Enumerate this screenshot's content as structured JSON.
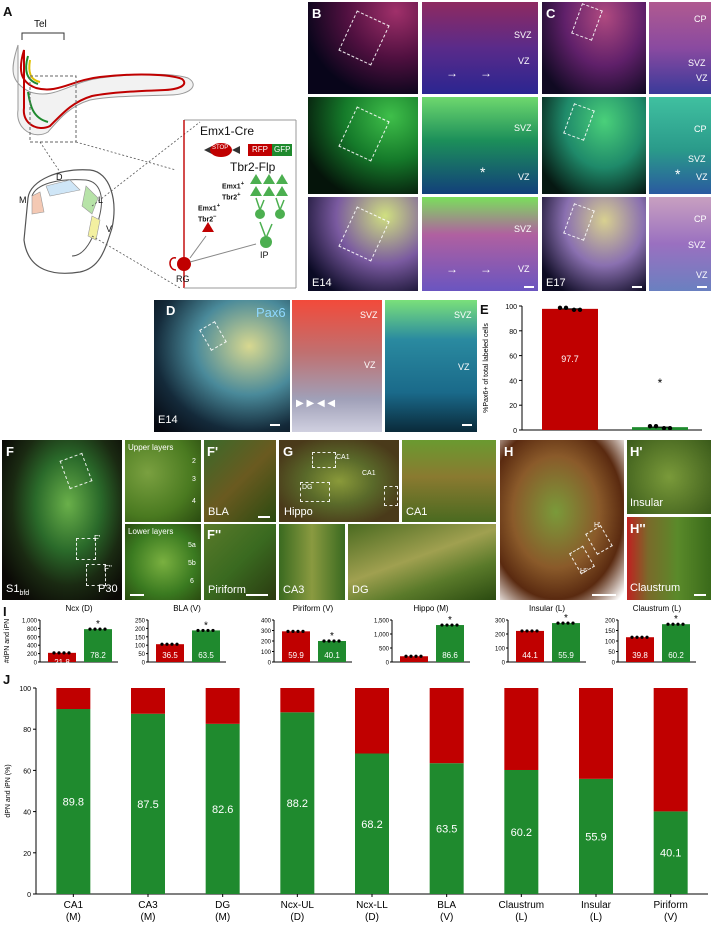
{
  "panel_letters": {
    "A": "A",
    "B": "B",
    "C": "C",
    "D": "D",
    "E": "E",
    "F": "F",
    "Fp": "F'",
    "Fpp": "F''",
    "G": "G",
    "H": "H",
    "Hp": "H'",
    "Hpp": "H''",
    "I": "I",
    "J": "J"
  },
  "panel_a": {
    "tel": "Tel",
    "d": "D",
    "m": "M",
    "l": "L",
    "v": "V",
    "emx1_cre": "Emx1-Cre",
    "stop": "STOP",
    "rfp": "RFP",
    "gfp": "GFP",
    "tbr2_flp": "Tbr2-Flp",
    "emx1_tbr2_pos_1": "Emx1",
    "emx1_tbr2_pos_2": "Tbr2",
    "emx1_tbr2_neg_1": "Emx1",
    "emx1_tbr2_neg_2": "Tbr2",
    "ip": "IP",
    "rg": "RG"
  },
  "panel_b": {
    "svz": "SVZ",
    "vz": "VZ",
    "age": "E14"
  },
  "panel_c": {
    "cp": "CP",
    "svz": "SVZ",
    "vz": "VZ",
    "age": "E17"
  },
  "panel_d": {
    "marker": "Pax6",
    "age": "E14",
    "svz": "SVZ",
    "vz": "VZ"
  },
  "panel_f": {
    "region": "S1",
    "region_sub": "bfd",
    "age": "P30",
    "upper": "Upper layers",
    "lower": "Lower layers",
    "l2": "2",
    "l3": "3",
    "l4": "4",
    "l5a": "5a",
    "l5b": "5b",
    "l6": "6",
    "fp_tag": "F'",
    "fpp_tag": "F''"
  },
  "panel_fp": {
    "label": "BLA"
  },
  "panel_fpp": {
    "label": "Piriform"
  },
  "panel_g": {
    "label": "Hippo",
    "ca1": "CA1",
    "dg": "DG"
  },
  "panel_g_ca1": {
    "label": "CA1"
  },
  "panel_g_ca3": {
    "label": "CA3"
  },
  "panel_g_dg": {
    "label": "DG"
  },
  "panel_h": {
    "hp_tag": "H'",
    "hpp_tag": "H''"
  },
  "panel_hp": {
    "label": "Insular"
  },
  "panel_hpp": {
    "label": "Claustrum"
  },
  "colors": {
    "red": "#c00000",
    "green": "#1f8a2e"
  },
  "chart_data": [
    {
      "id": "E",
      "type": "bar",
      "ylabel": "%Pax6+ of total labeled cells",
      "ylim": [
        0,
        100
      ],
      "yticks": [
        0,
        20,
        40,
        60,
        80,
        100
      ],
      "series": [
        {
          "name": "",
          "color": "#c00000",
          "values": [
            97.7
          ]
        },
        {
          "name": "",
          "color": "#1f8a2e",
          "values": [
            2.3
          ]
        }
      ],
      "value_labels": [
        "97.7",
        ""
      ],
      "significance": [
        "",
        "*"
      ]
    },
    {
      "id": "I1",
      "type": "bar",
      "title": "Ncx (D)",
      "ylabel": "#dPN and iPN",
      "ylim": [
        0,
        1000
      ],
      "yticks": [
        0,
        200,
        400,
        600,
        800,
        1000
      ],
      "values": [
        218,
        782
      ],
      "colors": [
        "#c00000",
        "#1f8a2e"
      ],
      "value_labels": [
        "21.8",
        "78.2"
      ],
      "significance": [
        "",
        "*"
      ]
    },
    {
      "id": "I2",
      "type": "bar",
      "title": "BLA (V)",
      "ylim": [
        0,
        250
      ],
      "yticks": [
        0,
        50,
        100,
        150,
        200,
        250
      ],
      "values": [
        106,
        188
      ],
      "colors": [
        "#c00000",
        "#1f8a2e"
      ],
      "value_labels": [
        "36.5",
        "63.5"
      ],
      "significance": [
        "",
        "*"
      ]
    },
    {
      "id": "I3",
      "type": "bar",
      "title": "Piriform (V)",
      "ylim": [
        0,
        400
      ],
      "yticks": [
        0,
        100,
        200,
        300,
        400
      ],
      "values": [
        292,
        200
      ],
      "colors": [
        "#c00000",
        "#1f8a2e"
      ],
      "value_labels": [
        "59.9",
        "40.1"
      ],
      "significance": [
        "",
        "*"
      ]
    },
    {
      "id": "I4",
      "type": "bar",
      "title": "Hippo (M)",
      "ylim": [
        0,
        1500
      ],
      "yticks": [
        0,
        500,
        1000,
        1500
      ],
      "values": [
        205,
        1320
      ],
      "colors": [
        "#c00000",
        "#1f8a2e"
      ],
      "value_labels": [
        "13.4",
        "86.6"
      ],
      "significance": [
        "",
        "*"
      ]
    },
    {
      "id": "I5",
      "type": "bar",
      "title": "Insular (L)",
      "ylim": [
        0,
        300
      ],
      "yticks": [
        0,
        100,
        200,
        300
      ],
      "values": [
        222,
        278
      ],
      "colors": [
        "#c00000",
        "#1f8a2e"
      ],
      "value_labels": [
        "44.1",
        "55.9"
      ],
      "significance": [
        "",
        "*"
      ]
    },
    {
      "id": "I6",
      "type": "bar",
      "title": "Claustrum (L)",
      "ylim": [
        0,
        200
      ],
      "yticks": [
        0,
        50,
        100,
        150,
        200
      ],
      "values": [
        118,
        180
      ],
      "colors": [
        "#c00000",
        "#1f8a2e"
      ],
      "value_labels": [
        "39.8",
        "60.2"
      ],
      "significance": [
        "",
        "*"
      ]
    },
    {
      "id": "J",
      "type": "bar",
      "stacked": true,
      "ylabel": "dPN and iPN (%)",
      "ylim": [
        0,
        100
      ],
      "yticks": [
        0,
        20,
        40,
        60,
        80,
        100
      ],
      "categories": [
        "CA1",
        "CA3",
        "DG",
        "Ncx-UL",
        "Ncx-LL",
        "BLA",
        "Claustrum",
        "Insular",
        "Piriform"
      ],
      "category_sub": [
        "(M)",
        "(M)",
        "(M)",
        "(D)",
        "(D)",
        "(V)",
        "(L)",
        "(L)",
        "(V)"
      ],
      "series": [
        {
          "name": "",
          "color": "#1f8a2e",
          "values": [
            89.8,
            87.5,
            82.6,
            88.2,
            68.2,
            63.5,
            60.2,
            55.9,
            40.1
          ]
        },
        {
          "name": "",
          "color": "#c00000",
          "values": [
            10.2,
            12.5,
            17.4,
            11.8,
            31.8,
            36.5,
            39.8,
            44.1,
            59.9
          ]
        }
      ],
      "value_labels": [
        "89.8",
        "87.5",
        "82.6",
        "88.2",
        "68.2",
        "63.5",
        "60.2",
        "55.9",
        "40.1"
      ]
    }
  ]
}
